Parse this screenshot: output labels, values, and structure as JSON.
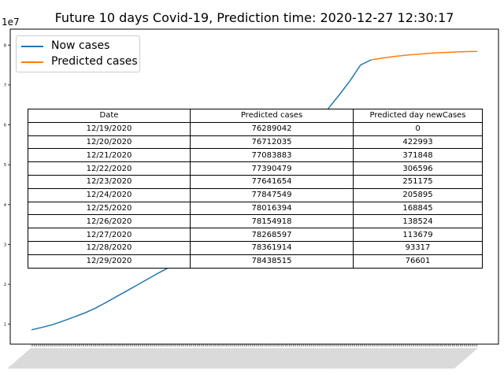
{
  "chart_data": {
    "type": "line",
    "title": "Future 10 days Covid-19, Prediction time: 2020-12-27 12:30:17",
    "offset_label": "1e7",
    "ylim": [
      5000000,
      84000000
    ],
    "ytick_values": [
      10000000,
      20000000,
      30000000,
      40000000,
      50000000,
      60000000,
      70000000,
      80000000
    ],
    "ytick_labels": [
      "1",
      "2",
      "3",
      "4",
      "5",
      "6",
      "7",
      "8"
    ],
    "legend_location": "upper left",
    "grid": false,
    "series": [
      {
        "name": "Now cases",
        "color": "#1f77b4",
        "values": [
          8600000,
          9200000,
          9900000,
          10800000,
          11800000,
          12800000,
          14000000,
          15400000,
          16900000,
          18400000,
          19900000,
          21400000,
          22900000,
          24300000,
          25900000,
          27600000,
          29400000,
          31200000,
          33200000,
          35400000,
          37700000,
          40300000,
          43000000,
          46000000,
          49500000,
          53100000,
          56900000,
          60600000,
          64200000,
          67500000,
          71000000,
          75000000,
          76289042
        ]
      },
      {
        "name": "Predicted cases",
        "color": "#ff7f0e",
        "values": [
          76289042,
          76712035,
          77083883,
          77390479,
          77641654,
          77847549,
          78016394,
          78154918,
          78268597,
          78361914,
          78438515
        ]
      }
    ]
  },
  "table": {
    "headers": [
      "Date",
      "Predicted cases",
      "Predicted day newCases"
    ],
    "rows": [
      [
        "12/19/2020",
        "76289042",
        "0"
      ],
      [
        "12/20/2020",
        "76712035",
        "422993"
      ],
      [
        "12/21/2020",
        "77083883",
        "371848"
      ],
      [
        "12/22/2020",
        "77390479",
        "306596"
      ],
      [
        "12/23/2020",
        "77641654",
        "251175"
      ],
      [
        "12/24/2020",
        "77847549",
        "205895"
      ],
      [
        "12/25/2020",
        "78016394",
        "168845"
      ],
      [
        "12/26/2020",
        "78154918",
        "138524"
      ],
      [
        "12/27/2020",
        "78268597",
        "113679"
      ],
      [
        "12/28/2020",
        "78361914",
        "93317"
      ],
      [
        "12/29/2020",
        "78438515",
        "76601"
      ]
    ]
  }
}
